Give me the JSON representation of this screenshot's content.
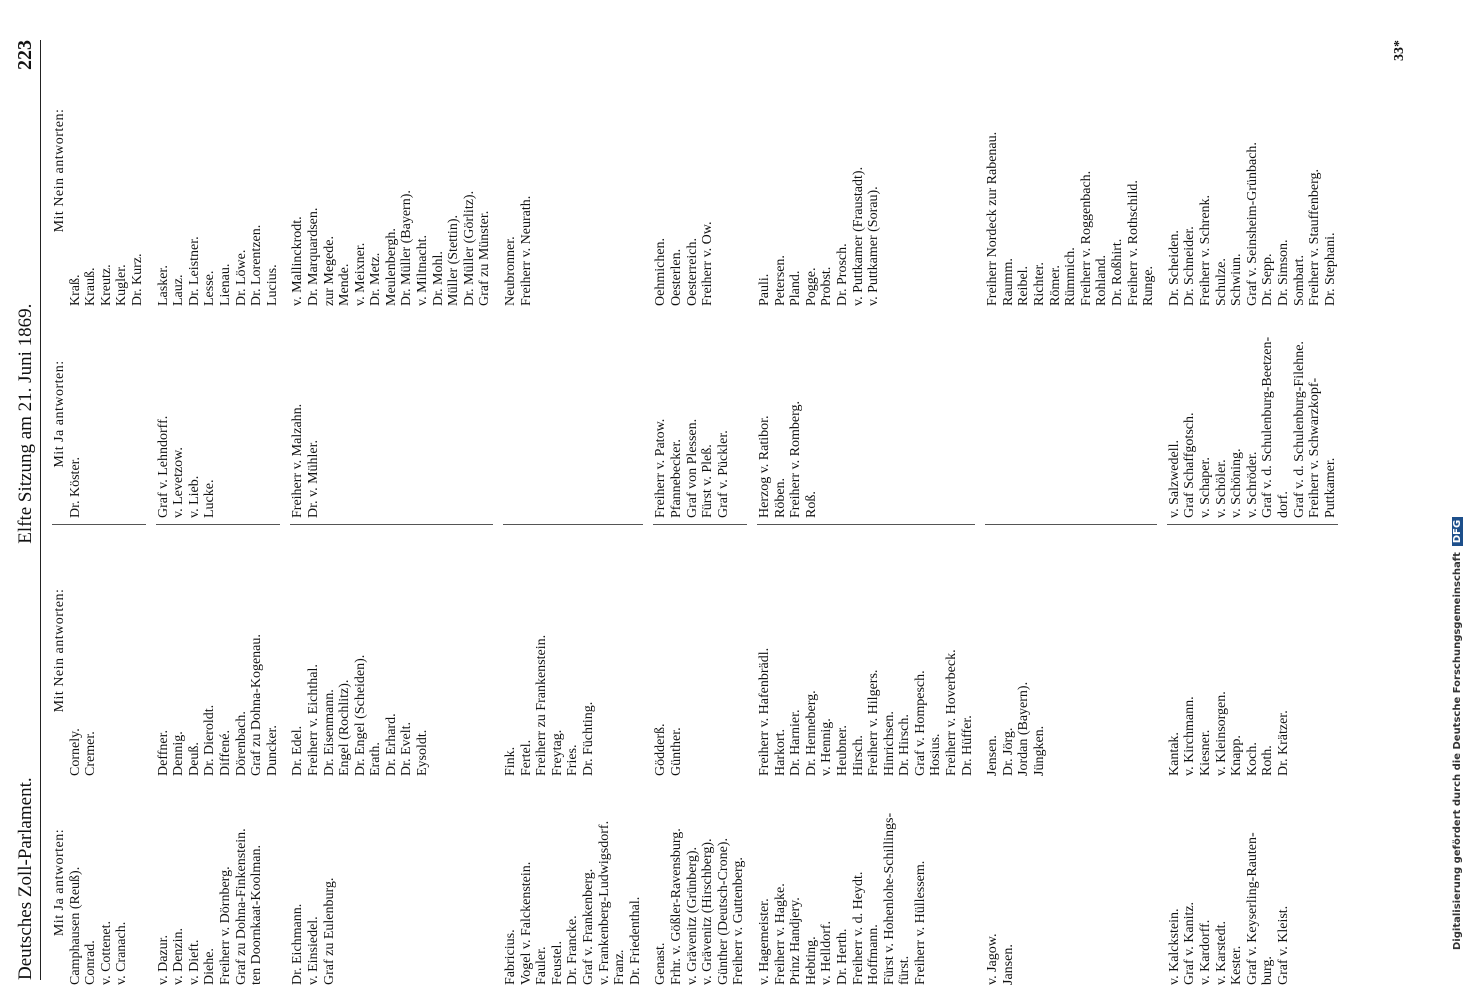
{
  "header": {
    "left": "Deutsches Zoll-Parlament.",
    "center": "Elfte Sitzung am 21. Juni 1869.",
    "page": "223"
  },
  "sections": [
    {
      "columns": [
        [
          "Mit Ja antworten:",
          "Camphausen (Reuß).",
          "Conrad.",
          "v. Cottenet.",
          "v. Cranach."
        ],
        [
          "Mit Nein antworten:",
          "Cornely.",
          "Cremer."
        ],
        [
          "Mit Ja antworten:",
          "Dr. Köster."
        ],
        [
          "Mit Nein antworten:",
          "Kraß.",
          "Krauß.",
          "Kreutz.",
          "Kugler.",
          "Dr. Kurz."
        ]
      ]
    },
    {
      "columns": [
        [
          "v. Dazur.",
          "v. Denzin.",
          "v. Dieft.",
          "Diehe.",
          "Freiherr v. Dörnberg.",
          "Graf zu Dohna-Finkenstein.",
          "ten Doornkaat-Koolman."
        ],
        [
          "Deffner.",
          "Dennig.",
          "Deuß.",
          "Dr. Dieroldt.",
          "Diffené.",
          "Dörenbach.",
          "Graf zu Dohna-Kogenau.",
          "Duncker."
        ],
        [
          "Graf v. Lehndorff.",
          "v. Levetzow.",
          "v. Lieb.",
          "Lucke."
        ],
        [
          "Lasker.",
          "Lauz.",
          "Dr. Leistner.",
          "Lesse.",
          "Lienau.",
          "Dr. Löwe.",
          "Dr. Lorentzen.",
          "Lucius."
        ]
      ]
    },
    {
      "columns": [
        [
          "Dr. Eichmann.",
          "v. Einsiedel.",
          "Graf zu Eulenburg."
        ],
        [
          "Dr. Edel.",
          "Freiherr v. Eichthal.",
          "Dr. Eisenmann.",
          "Engel (Rochlitz).",
          "Dr. Engel (Scheiden).",
          "Erath.",
          "Dr. Erhard.",
          "Dr. Evelt.",
          "Eysoldt."
        ],
        [
          "Freiherr v. Malzahn.",
          "Dr. v. Mühler."
        ],
        [
          "v. Mallinckrodt.",
          "Dr. Marquardsen.",
          "zur Megede.",
          "Mende.",
          "v. Meixner.",
          "Dr. Metz.",
          "Meulenbergh.",
          "Dr. Müller (Bayern).",
          "v. Miltnacht.",
          "Dr. Mohl.",
          "Müller (Stettin).",
          "Dr. Müller (Görlitz).",
          "Graf zu Münster."
        ]
      ]
    },
    {
      "columns": [
        [
          "Fabricius.",
          "Vogel v. Falckenstein.",
          "Fauler.",
          "Feustel.",
          "Dr. Francke.",
          "Graf v. Frankenberg.",
          "v. Frankenberg-Ludwigsdorf.",
          "Franz.",
          "Dr. Friedenthal."
        ],
        [
          "Fink.",
          "Fertel.",
          "Freiherr zu Frankenstein.",
          "Freytag.",
          "Fries.",
          "Dr. Füchting."
        ],
        [],
        [
          "Neubronner.",
          "Freiherr v. Neurath."
        ]
      ]
    },
    {
      "columns": [
        [
          "Genast.",
          "Frhr. v. Gößler-Ravensburg.",
          "v. Grävenitz (Grünberg).",
          "v. Grävenitz (Hirschberg).",
          "Günther (Deutsch-Crone).",
          "Freiherr v. Guttenberg."
        ],
        [
          "Gödderß.",
          "Günther."
        ],
        [
          "Freiherr v. Patow.",
          "Pfannebecker.",
          "Graf von Plessen.",
          "Fürst v. Pleß.",
          "Graf v. Pückler."
        ],
        [
          "Oehmichen.",
          "Oesterlen.",
          "Oesterreich.",
          "Freiherr v. Ow."
        ]
      ]
    },
    {
      "columns": [
        [
          "v. Hagemeister.",
          "Freiherr v. Hagke.",
          "Prinz Handjery.",
          "Hebting.",
          "v. Helldorf.",
          "Dr. Herth.",
          "Freiherr v. d. Heydt.",
          "Hoffmann.",
          "Fürst v. Hohenlohe-Schillings-",
          "fürst.",
          "Freiherr v. Hüllessem."
        ],
        [
          "Freiherr v. Hafenbrädl.",
          "Harkort.",
          "Dr. Harnier.",
          "Dr. Henneberg.",
          "v. Hennig.",
          "Heubner.",
          "Hirsch.",
          "Freiherr v. Hilgers.",
          "Hinrichsen.",
          "Dr. Hirsch.",
          "Graf v. Hompesch.",
          "Hosius.",
          "Freiherr v. Hoverbeck.",
          "Dr. Hüffer."
        ],
        [
          "Herzog v. Ratibor.",
          "Röben.",
          "Freiherr v. Romberg.",
          "Roß."
        ],
        [
          "Pauli.",
          "Petersen.",
          "Pland.",
          "Pogge.",
          "Probst.",
          "Dr. Prosch.",
          "v. Puttkamer (Fraustadt).",
          "v. Puttkamer (Sorau)."
        ]
      ]
    },
    {
      "columns": [
        [
          "v. Jagow.",
          "Jansen."
        ],
        [
          "Jensen.",
          "Dr. Jörg.",
          "Jordan (Bayern).",
          "Jüngken."
        ],
        [],
        [
          "Freiherr Nordeck zur Rabenau.",
          "Raumm.",
          "Reibel.",
          "Richter.",
          "Römer.",
          "Rümmich.",
          "Freiherr v. Roggenbach.",
          "Rohland.",
          "Dr. Roßhirt.",
          "Freiherr v. Rothschild.",
          "Runge."
        ]
      ]
    },
    {
      "columns": [
        [
          "v. Kalckstein.",
          "Graf v. Kanitz.",
          "v. Kardorff.",
          "v. Karstedt.",
          "Kester.",
          "Graf v. Keyserling-Rauten-",
          "burg.",
          "Graf v. Kleist."
        ],
        [
          "Kantak.",
          "v. Kirchmann.",
          "Kiesner.",
          "v. Kleinsorgen.",
          "Knapp.",
          "Koch.",
          "Roth.",
          "Dr. Krätzer."
        ],
        [
          "v. Salzwedell.",
          "Graf Schaffgotsch.",
          "v. Schaper.",
          "v. Schöler.",
          "v. Schöning.",
          "v. Schröder.",
          "Graf v. d. Schulenburg-Beetzen-",
          "dorf.",
          "Graf v. d. Schulenburg-Filehne.",
          "Freiherr v. Schwarzkopf-",
          "Puttkamer."
        ],
        [
          "Dr. Scheiden.",
          "Dr. Schneider.",
          "Freiherr v. Schrenk.",
          "Schulze.",
          "Schwiun.",
          "Graf v. Seinsheim-Grünbach.",
          "Dr. Sepp.",
          "Dr. Simson.",
          "Sombart.",
          "Freiherr v. Stauffenberg.",
          "Dr. Stephani."
        ]
      ]
    }
  ],
  "footer": "33*",
  "sidebar": {
    "text": "Digitalisierung gefördert durch die Deutsche Forschungsgemeinschaft",
    "logo": "DFG"
  }
}
